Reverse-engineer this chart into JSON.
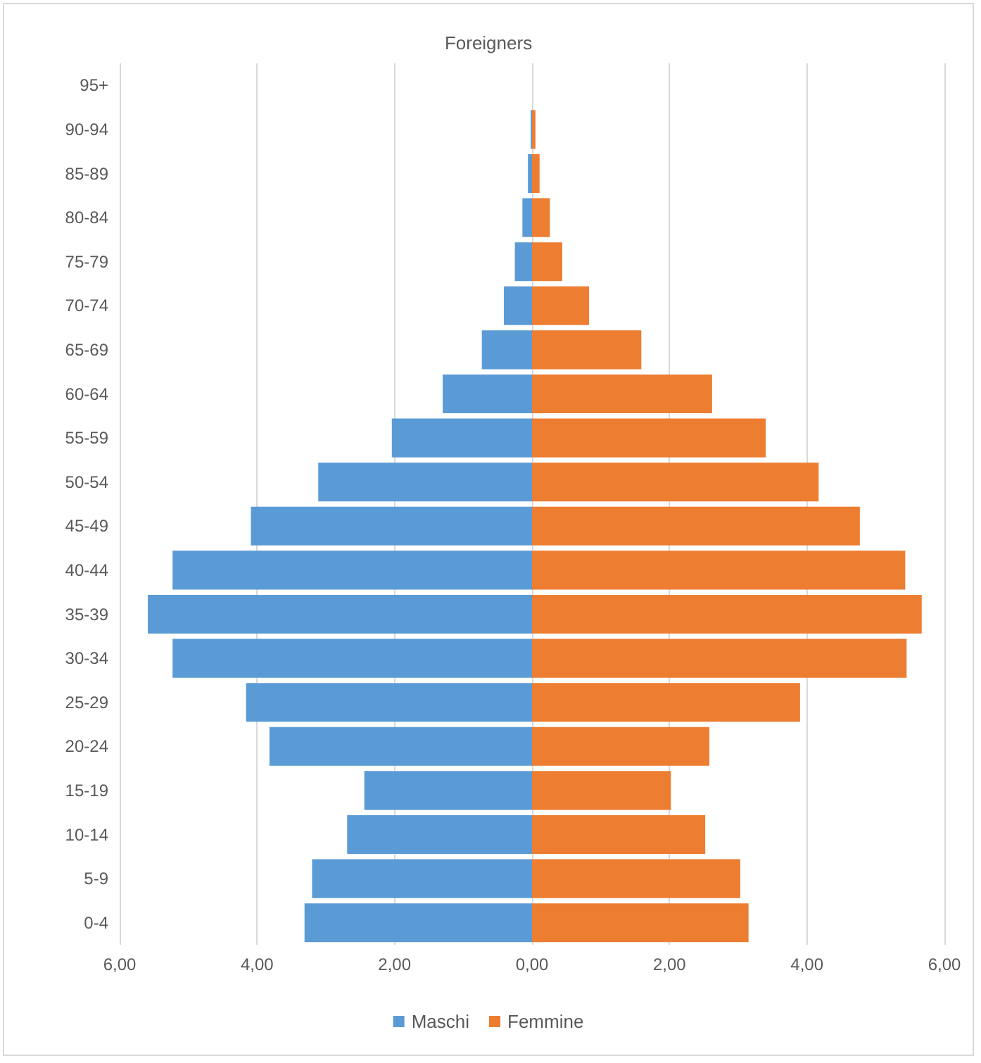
{
  "chart_data": {
    "type": "bar",
    "orientation": "horizontal",
    "title": "Foreigners",
    "categories": [
      "95+",
      "90-94",
      "85-89",
      "80-84",
      "75-79",
      "70-74",
      "65-69",
      "60-64",
      "55-59",
      "50-54",
      "45-49",
      "40-44",
      "35-39",
      "30-34",
      "25-29",
      "20-24",
      "15-19",
      "10-14",
      "5-9",
      "0-4"
    ],
    "series": [
      {
        "name": "Maschi",
        "color": "#5b9bd5",
        "values": [
          0,
          -0.02,
          -0.06,
          -0.14,
          -0.25,
          -0.41,
          -0.73,
          -1.3,
          -2.04,
          -3.11,
          -4.09,
          -5.23,
          -5.59,
          -5.23,
          -4.16,
          -3.82,
          -2.44,
          -2.69,
          -3.2,
          -3.31
        ]
      },
      {
        "name": "Femmine",
        "color": "#ed7d31",
        "values": [
          0,
          0.05,
          0.11,
          0.26,
          0.44,
          0.83,
          1.59,
          2.62,
          3.4,
          4.17,
          4.77,
          5.43,
          5.67,
          5.45,
          3.9,
          2.58,
          2.02,
          2.52,
          3.03,
          3.15
        ]
      }
    ],
    "xlim": [
      -6,
      6
    ],
    "xticks": [
      {
        "value": -6,
        "label": "6,00"
      },
      {
        "value": -4,
        "label": "4,00"
      },
      {
        "value": -2,
        "label": "2,00"
      },
      {
        "value": 0,
        "label": "0,00"
      },
      {
        "value": 2,
        "label": "2,00"
      },
      {
        "value": 4,
        "label": "4,00"
      },
      {
        "value": 6,
        "label": "6,00"
      }
    ],
    "stacked": true,
    "grid": "x",
    "legend": "bottom"
  }
}
